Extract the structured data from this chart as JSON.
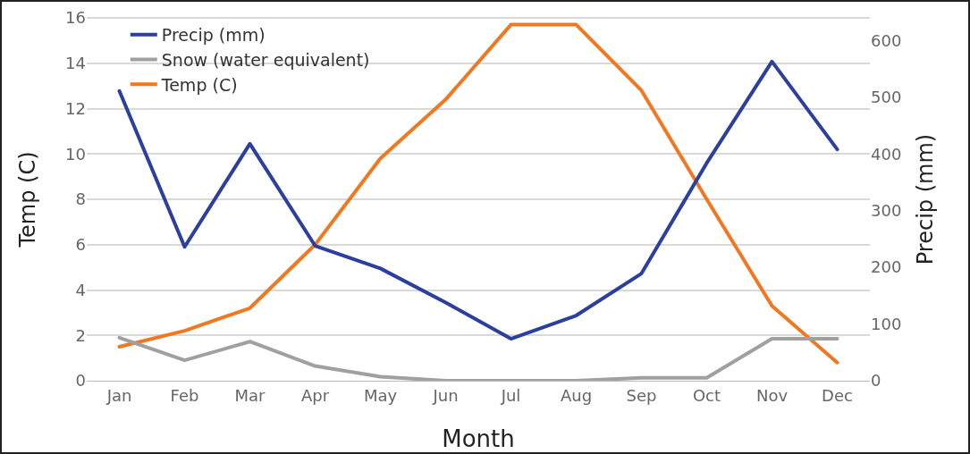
{
  "chart_data": {
    "type": "line",
    "xlabel": "Month",
    "ylabel": "Temp (C)",
    "y2label": "Precip (mm)",
    "categories": [
      "Jan",
      "Feb",
      "Mar",
      "Apr",
      "May",
      "Jun",
      "Jul",
      "Aug",
      "Sep",
      "Oct",
      "Nov",
      "Dec"
    ],
    "series": [
      {
        "name": "Precip (mm)",
        "color": "#2a3f9e",
        "axis": "y2",
        "values": [
          511,
          236,
          418,
          238,
          198,
          138,
          74,
          115,
          189,
          384,
          563,
          408
        ]
      },
      {
        "name": "Snow (water equivalent)",
        "color": "#a0a0a0",
        "axis": "y2",
        "values": [
          76,
          36,
          69,
          26,
          7,
          0,
          0,
          0,
          5,
          5,
          74,
          74
        ]
      },
      {
        "name": "Temp (C)",
        "color": "#f07820",
        "values": [
          1.5,
          2.2,
          3.2,
          6.0,
          9.8,
          12.4,
          15.7,
          15.7,
          12.8,
          8.0,
          3.3,
          0.8
        ]
      }
    ],
    "ylim": [
      0,
      16
    ],
    "yticks": [
      0,
      2,
      4,
      6,
      8,
      10,
      12,
      14,
      16
    ],
    "y2lim": [
      0,
      640
    ],
    "y2ticks": [
      0,
      100,
      200,
      300,
      400,
      500,
      600
    ],
    "grid": "y",
    "legend": "top left",
    "marker": "none",
    "line_style": "solid"
  }
}
